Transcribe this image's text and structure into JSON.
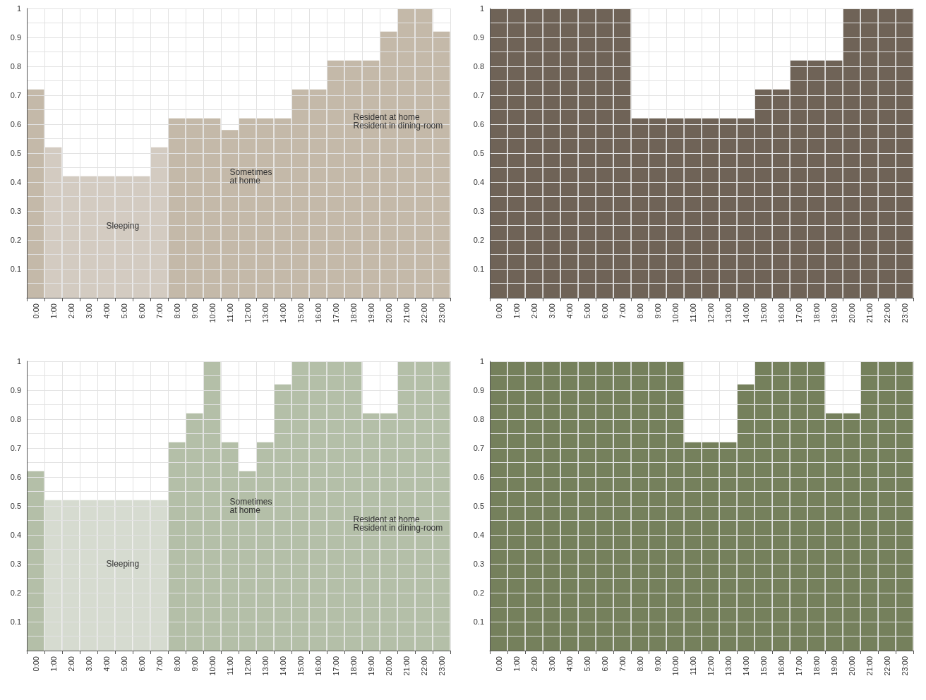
{
  "chart_data": [
    {
      "type": "bar",
      "categories": [
        "0:00",
        "1:00",
        "2:00",
        "3:00",
        "4:00",
        "5:00",
        "6:00",
        "7:00",
        "8:00",
        "9:00",
        "10:00",
        "11:00",
        "12:00",
        "13:00",
        "14:00",
        "15:00",
        "16:00",
        "17:00",
        "18:00",
        "19:00",
        "20:00",
        "21:00",
        "22:00",
        "23:00"
      ],
      "values": [
        0.72,
        0.52,
        0.42,
        0.42,
        0.42,
        0.42,
        0.42,
        0.52,
        0.62,
        0.62,
        0.62,
        0.58,
        0.62,
        0.62,
        0.62,
        0.72,
        0.72,
        0.82,
        0.82,
        0.82,
        0.92,
        1,
        1,
        0.92
      ],
      "colors": [
        "#c4b9a9",
        "#d3cbc1",
        "#d3cbc1",
        "#d3cbc1",
        "#d3cbc1",
        "#d3cbc1",
        "#d3cbc1",
        "#d3cbc1",
        "#c4b9a9",
        "#c4b9a9",
        "#c4b9a9",
        "#c4b9a9",
        "#c4b9a9",
        "#c4b9a9",
        "#c4b9a9",
        "#c4b9a9",
        "#c4b9a9",
        "#c4b9a9",
        "#c4b9a9",
        "#c4b9a9",
        "#c4b9a9",
        "#c4b9a9",
        "#c4b9a9",
        "#c4b9a9"
      ],
      "ylim": [
        0,
        1
      ],
      "yticks": [
        {
          "value": 0.05,
          "label": null
        },
        0.1,
        {
          "value": 0.15,
          "label": null
        },
        0.2,
        {
          "value": 0.25,
          "label": null
        },
        0.3,
        {
          "value": 0.35,
          "label": null
        },
        0.4,
        {
          "value": 0.45,
          "label": null
        },
        0.5,
        {
          "value": 0.55,
          "label": null
        },
        0.6,
        {
          "value": 0.65,
          "label": null
        },
        0.7,
        {
          "value": 0.75,
          "label": null
        },
        0.8,
        {
          "value": 0.85,
          "label": null
        },
        0.9,
        {
          "value": 0.95,
          "label": null
        },
        1
      ],
      "grid": true,
      "annotations": [
        "Sleeping",
        "Sometimes\nat home",
        "Resident at home\nResident in dining-room"
      ]
    },
    {
      "type": "bar",
      "categories": [
        "0:00",
        "1:00",
        "2:00",
        "3:00",
        "4:00",
        "5:00",
        "6:00",
        "7:00",
        "8:00",
        "9:00",
        "10:00",
        "11:00",
        "12:00",
        "13:00",
        "14:00",
        "15:00",
        "16:00",
        "17:00",
        "18:00",
        "19:00",
        "20:00",
        "21:00",
        "22:00",
        "23:00"
      ],
      "values": [
        1,
        1,
        1,
        1,
        1,
        1,
        1,
        1,
        0.62,
        0.62,
        0.62,
        0.62,
        0.62,
        0.62,
        0.62,
        0.72,
        0.72,
        0.82,
        0.82,
        0.82,
        1,
        1,
        1,
        1
      ],
      "color": "#6f6357",
      "ylim": [
        0,
        1
      ],
      "yticks": [
        {
          "value": 0.05,
          "label": null
        },
        0.1,
        {
          "value": 0.15,
          "label": null
        },
        0.2,
        {
          "value": 0.25,
          "label": null
        },
        0.3,
        {
          "value": 0.35,
          "label": null
        },
        0.4,
        {
          "value": 0.45,
          "label": null
        },
        0.5,
        {
          "value": 0.55,
          "label": null
        },
        0.6,
        {
          "value": 0.65,
          "label": null
        },
        0.7,
        {
          "value": 0.75,
          "label": null
        },
        0.8,
        {
          "value": 0.85,
          "label": null
        },
        0.9,
        {
          "value": 0.95,
          "label": null
        },
        1
      ],
      "grid": true
    },
    {
      "type": "bar",
      "categories": [
        "0:00",
        "1:00",
        "2:00",
        "3:00",
        "4:00",
        "5:00",
        "6:00",
        "7:00",
        "8:00",
        "9:00",
        "10:00",
        "11:00",
        "12:00",
        "13:00",
        "14:00",
        "15:00",
        "16:00",
        "17:00",
        "18:00",
        "19:00",
        "20:00",
        "21:00",
        "22:00",
        "23:00"
      ],
      "values": [
        0.62,
        0.52,
        0.52,
        0.52,
        0.52,
        0.52,
        0.52,
        0.52,
        0.72,
        0.82,
        1,
        0.72,
        0.62,
        0.72,
        0.92,
        1,
        1,
        1,
        1,
        0.82,
        0.82,
        1,
        1,
        1
      ],
      "colors": [
        "#b4bfa8",
        "#d6dbd0",
        "#d6dbd0",
        "#d6dbd0",
        "#d6dbd0",
        "#d6dbd0",
        "#d6dbd0",
        "#d6dbd0",
        "#b4bfa8",
        "#b4bfa8",
        "#b4bfa8",
        "#b4bfa8",
        "#b4bfa8",
        "#b4bfa8",
        "#b4bfa8",
        "#b4bfa8",
        "#b4bfa8",
        "#b4bfa8",
        "#b4bfa8",
        "#b4bfa8",
        "#b4bfa8",
        "#b4bfa8",
        "#b4bfa8",
        "#b4bfa8"
      ],
      "ylim": [
        0,
        1
      ],
      "yticks": [
        {
          "value": 0.05,
          "label": null
        },
        0.1,
        {
          "value": 0.15,
          "label": null
        },
        0.2,
        {
          "value": 0.25,
          "label": null
        },
        0.3,
        {
          "value": 0.35,
          "label": null
        },
        0.4,
        {
          "value": 0.45,
          "label": null
        },
        0.5,
        {
          "value": 0.55,
          "label": null
        },
        0.6,
        {
          "value": 0.65,
          "label": null
        },
        0.7,
        {
          "value": 0.75,
          "label": null
        },
        0.8,
        {
          "value": 0.85,
          "label": null
        },
        0.9,
        {
          "value": 0.95,
          "label": null
        },
        1
      ],
      "grid": true,
      "annotations": [
        "Sleeping",
        "Sometimes\nat home",
        "Resident at home\nResident in dining-room"
      ]
    },
    {
      "type": "bar",
      "categories": [
        "0:00",
        "1:00",
        "2:00",
        "3:00",
        "4:00",
        "5:00",
        "6:00",
        "7:00",
        "8:00",
        "9:00",
        "10:00",
        "11:00",
        "12:00",
        "13:00",
        "14:00",
        "15:00",
        "16:00",
        "17:00",
        "18:00",
        "19:00",
        "20:00",
        "21:00",
        "22:00",
        "23:00"
      ],
      "values": [
        1,
        1,
        1,
        1,
        1,
        1,
        1,
        1,
        1,
        1,
        1,
        0.72,
        0.72,
        0.72,
        0.92,
        1,
        1,
        1,
        1,
        0.82,
        0.82,
        1,
        1,
        1
      ],
      "color": "#75805c",
      "ylim": [
        0,
        1
      ],
      "yticks": [
        {
          "value": 0.05,
          "label": null
        },
        0.1,
        {
          "value": 0.15,
          "label": null
        },
        0.2,
        {
          "value": 0.25,
          "label": null
        },
        0.3,
        {
          "value": 0.35,
          "label": null
        },
        0.4,
        {
          "value": 0.45,
          "label": null
        },
        0.5,
        {
          "value": 0.55,
          "label": null
        },
        0.6,
        {
          "value": 0.65,
          "label": null
        },
        0.7,
        {
          "value": 0.75,
          "label": null
        },
        0.8,
        {
          "value": 0.85,
          "label": null
        },
        0.9,
        {
          "value": 0.95,
          "label": null
        },
        1
      ],
      "grid": true
    }
  ]
}
